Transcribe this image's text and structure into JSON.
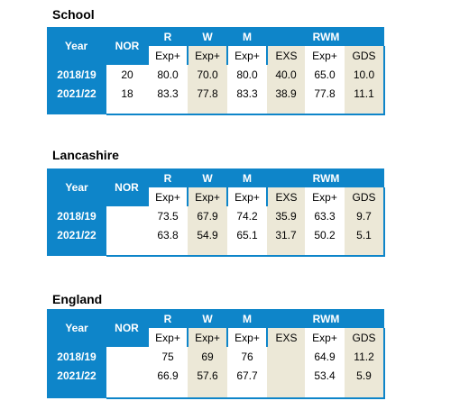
{
  "sections": [
    {
      "title": "School",
      "headers": {
        "year": "Year",
        "nor": "NOR",
        "r": "R",
        "w": "W",
        "m": "M",
        "rwm": "RWM"
      },
      "subheaders": [
        "Exp+",
        "Exp+",
        "Exp+",
        "EXS",
        "Exp+",
        "GDS"
      ],
      "rows": [
        {
          "year": "2018/19",
          "nor": "20",
          "values": [
            "80.0",
            "70.0",
            "80.0",
            "40.0",
            "65.0",
            "10.0"
          ]
        },
        {
          "year": "2021/22",
          "nor": "18",
          "values": [
            "83.3",
            "77.8",
            "83.3",
            "38.9",
            "77.8",
            "11.1"
          ]
        }
      ]
    },
    {
      "title": "Lancashire",
      "headers": {
        "year": "Year",
        "nor": "NOR",
        "r": "R",
        "w": "W",
        "m": "M",
        "rwm": "RWM"
      },
      "subheaders": [
        "Exp+",
        "Exp+",
        "Exp+",
        "EXS",
        "Exp+",
        "GDS"
      ],
      "rows": [
        {
          "year": "2018/19",
          "nor": "",
          "values": [
            "73.5",
            "67.9",
            "74.2",
            "35.9",
            "63.3",
            "9.7"
          ]
        },
        {
          "year": "2021/22",
          "nor": "",
          "values": [
            "63.8",
            "54.9",
            "65.1",
            "31.7",
            "50.2",
            "5.1"
          ]
        }
      ]
    },
    {
      "title": "England",
      "headers": {
        "year": "Year",
        "nor": "NOR",
        "r": "R",
        "w": "W",
        "m": "M",
        "rwm": "RWM"
      },
      "subheaders": [
        "Exp+",
        "Exp+",
        "Exp+",
        "EXS",
        "Exp+",
        "GDS"
      ],
      "rows": [
        {
          "year": "2018/19",
          "nor": "",
          "values": [
            "75",
            "69",
            "76",
            "",
            "64.9",
            "11.2"
          ]
        },
        {
          "year": "2021/22",
          "nor": "",
          "values": [
            "66.9",
            "57.6",
            "67.7",
            "",
            "53.4",
            "5.9"
          ]
        }
      ]
    }
  ]
}
